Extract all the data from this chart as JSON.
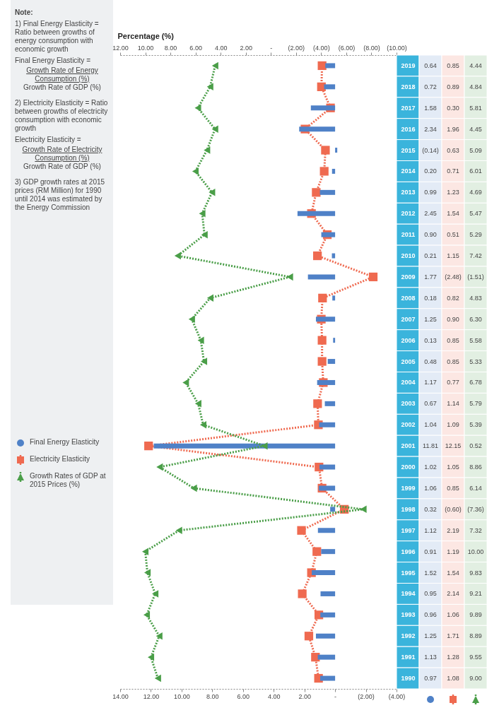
{
  "chart_data": {
    "type": "bar",
    "orientation": "horizontal",
    "categories": [
      "2019",
      "2018",
      "2017",
      "2016",
      "2015",
      "2014",
      "2013",
      "2012",
      "2011",
      "2010",
      "2009",
      "2008",
      "2007",
      "2006",
      "2005",
      "2004",
      "2003",
      "2002",
      "2001",
      "2000",
      "1999",
      "1998",
      "1997",
      "1996",
      "1995",
      "1994",
      "1993",
      "1992",
      "1991",
      "1990"
    ],
    "xlim": [
      14,
      -4
    ],
    "xticks": [
      {
        "value": 14,
        "label": "14.00"
      },
      {
        "value": 12,
        "label": "12.00"
      },
      {
        "value": 10,
        "label": "10.00"
      },
      {
        "value": 8,
        "label": "8.00"
      },
      {
        "value": 6,
        "label": "6.00"
      },
      {
        "value": 4,
        "label": "4.00"
      },
      {
        "value": 2,
        "label": "2.00"
      },
      {
        "value": 0,
        "label": "-"
      },
      {
        "value": -2,
        "label": "(2.00)"
      },
      {
        "value": -4,
        "label": "(4.00)"
      }
    ],
    "x2lim": [
      12,
      -10
    ],
    "x2ticks": [
      {
        "value": 12,
        "label": "12.00"
      },
      {
        "value": 10,
        "label": "10.00"
      },
      {
        "value": 8,
        "label": "8.00"
      },
      {
        "value": 6,
        "label": "6.00"
      },
      {
        "value": 4,
        "label": "4.00"
      },
      {
        "value": 2,
        "label": "2.00"
      },
      {
        "value": 0,
        "label": "-"
      },
      {
        "value": -2,
        "label": "(2.00)"
      },
      {
        "value": -4,
        "label": "(4.00)"
      },
      {
        "value": -6,
        "label": "(6.00)"
      },
      {
        "value": -8,
        "label": "(8.00)"
      },
      {
        "value": -10,
        "label": "(10.00)"
      }
    ],
    "x2label": "Percentage (%)",
    "legend": "left",
    "annotations": [
      "Note:",
      "1) Final Energy Elasticity = Ratio between growths of energy consumption with economic growth",
      "Final Energy Elasticity =",
      "Growth Rate of Energy Consumption (%)",
      "Growth Rate of GDP (%)",
      "2) Electricity Elasticity = Ratio between growths of electricity consumption with economic growth",
      "Electricity Elasticity =",
      "Growth Rate of Electricity Consumption (%)",
      "Growth Rate of GDP (%)",
      "3) GDP growth rates at 2015 prices (RM Million) for 1990 until 2014 was estimated by the Energy Commission"
    ],
    "series": [
      {
        "name": "Final Energy Elasticity",
        "color": "#4f81c7",
        "marker": "circle",
        "values": [
          0.64,
          0.72,
          1.58,
          2.34,
          -0.14,
          0.2,
          0.99,
          2.45,
          0.9,
          0.21,
          1.77,
          0.18,
          1.25,
          0.13,
          0.48,
          1.17,
          0.67,
          1.04,
          11.81,
          1.02,
          1.06,
          0.32,
          1.12,
          0.91,
          1.52,
          0.95,
          0.96,
          1.25,
          1.13,
          0.97
        ],
        "value_labels": [
          "0.64",
          "0.72",
          "1.58",
          "2.34",
          "(0.14)",
          "0.20",
          "0.99",
          "2.45",
          "0.90",
          "0.21",
          "1.77",
          "0.18",
          "1.25",
          "0.13",
          "0.48",
          "1.17",
          "0.67",
          "1.04",
          "11.81",
          "1.02",
          "1.06",
          "0.32",
          "1.12",
          "0.91",
          "1.52",
          "0.95",
          "0.96",
          "1.25",
          "1.13",
          "0.97"
        ]
      },
      {
        "name": "Electricity Elasticity",
        "type": "line",
        "color": "#ef6a50",
        "marker": "square",
        "line_style": "dotted",
        "values": [
          0.85,
          0.89,
          0.3,
          1.96,
          0.63,
          0.71,
          1.23,
          1.54,
          0.51,
          1.15,
          -2.48,
          0.82,
          0.9,
          0.85,
          0.85,
          0.77,
          1.14,
          1.09,
          12.15,
          1.05,
          0.85,
          -0.6,
          2.19,
          1.19,
          1.54,
          2.14,
          1.06,
          1.71,
          1.28,
          1.08
        ],
        "value_labels": [
          "0.85",
          "0.89",
          "0.30",
          "1.96",
          "0.63",
          "0.71",
          "1.23",
          "1.54",
          "0.51",
          "1.15",
          "(2.48)",
          "0.82",
          "0.90",
          "0.85",
          "0.85",
          "0.77",
          "1.14",
          "1.09",
          "12.15",
          "1.05",
          "0.85",
          "(0.60)",
          "2.19",
          "1.19",
          "1.54",
          "2.14",
          "1.06",
          "1.71",
          "1.28",
          "1.08"
        ]
      },
      {
        "name": "Growth Rates of GDP at 2015 Prices (%)",
        "type": "line",
        "axis": "x2",
        "color": "#4a9e48",
        "marker": "triangle",
        "line_style": "dotted",
        "values": [
          4.44,
          4.84,
          5.81,
          4.45,
          5.09,
          6.01,
          4.69,
          5.47,
          5.29,
          7.42,
          -1.51,
          4.83,
          6.3,
          5.58,
          5.33,
          6.78,
          5.79,
          5.39,
          0.52,
          8.86,
          6.14,
          -7.36,
          7.32,
          10.0,
          9.83,
          9.21,
          9.89,
          8.89,
          9.55,
          9.0
        ],
        "value_labels": [
          "4.44",
          "4.84",
          "5.81",
          "4.45",
          "5.09",
          "6.01",
          "4.69",
          "5.47",
          "5.29",
          "7.42",
          "(1.51)",
          "4.83",
          "6.30",
          "5.58",
          "5.33",
          "6.78",
          "5.79",
          "5.39",
          "0.52",
          "8.86",
          "6.14",
          "(7.36)",
          "7.32",
          "10.00",
          "9.83",
          "9.21",
          "9.89",
          "8.89",
          "9.55",
          "9.00"
        ]
      }
    ]
  }
}
